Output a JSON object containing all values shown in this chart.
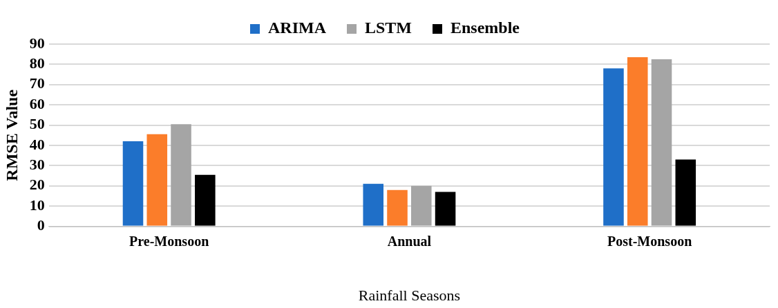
{
  "chart_data": {
    "type": "bar",
    "xlabel": "Rainfall Seasons",
    "ylabel": "RMSE Value",
    "categories": [
      "Pre-Monsoon",
      "Annual",
      "Post-Monsoon"
    ],
    "series": [
      {
        "name": "ARIMA",
        "color": "#1f6fc8",
        "values": [
          42,
          21,
          78
        ]
      },
      {
        "color": "#fb7d2a",
        "values": [
          45.5,
          18,
          83.5
        ]
      },
      {
        "name": "LSTM",
        "color": "#a5a5a5",
        "values": [
          50.5,
          20,
          82.5
        ]
      },
      {
        "name": "Ensemble",
        "color": "#000000",
        "values": [
          25.5,
          17,
          33
        ]
      }
    ],
    "ylim": [
      0,
      90
    ],
    "yticks": [
      0,
      10,
      20,
      30,
      40,
      50,
      60,
      70,
      80,
      90
    ],
    "grid": "y",
    "legend": "top"
  }
}
